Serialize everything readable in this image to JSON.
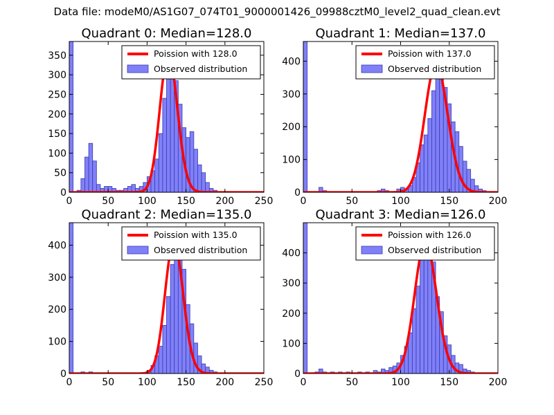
{
  "suptitle": "Data file: modeM0/AS1G07_074T01_9000001426_09988cztM0_level2_quad_clean.evt",
  "colors": {
    "hist_fill": "#8080f8",
    "hist_edge": "#3a3ab0",
    "fit_line": "#ff0000"
  },
  "chart_data": [
    {
      "type": "bar",
      "title": "Quadrant 0: Median=128.0",
      "median": 128.0,
      "xlim": [
        0,
        250
      ],
      "ylim": [
        0,
        385
      ],
      "xticks": [
        0,
        50,
        100,
        150,
        200,
        250
      ],
      "yticks": [
        0,
        50,
        100,
        150,
        200,
        250,
        300,
        350
      ],
      "bin_width": 5,
      "bins": [
        [
          0,
          385
        ],
        [
          10,
          5
        ],
        [
          15,
          35
        ],
        [
          20,
          90
        ],
        [
          25,
          125
        ],
        [
          30,
          80
        ],
        [
          35,
          20
        ],
        [
          40,
          10
        ],
        [
          45,
          15
        ],
        [
          50,
          15
        ],
        [
          55,
          10
        ],
        [
          60,
          5
        ],
        [
          65,
          5
        ],
        [
          70,
          10
        ],
        [
          75,
          15
        ],
        [
          80,
          20
        ],
        [
          85,
          10
        ],
        [
          90,
          15
        ],
        [
          95,
          25
        ],
        [
          100,
          40
        ],
        [
          105,
          55
        ],
        [
          110,
          85
        ],
        [
          115,
          150
        ],
        [
          120,
          240
        ],
        [
          125,
          320
        ],
        [
          130,
          360
        ],
        [
          135,
          285
        ],
        [
          140,
          225
        ],
        [
          145,
          165
        ],
        [
          150,
          140
        ],
        [
          155,
          155
        ],
        [
          160,
          110
        ],
        [
          165,
          70
        ],
        [
          170,
          50
        ],
        [
          175,
          25
        ],
        [
          180,
          10
        ],
        [
          185,
          5
        ]
      ],
      "legend": [
        "Poission with 128.0",
        "Observed distribution"
      ]
    },
    {
      "type": "bar",
      "title": "Quadrant 1: Median=137.0",
      "median": 137.0,
      "xlim": [
        0,
        200
      ],
      "ylim": [
        0,
        460
      ],
      "xticks": [
        0,
        50,
        100,
        150,
        200
      ],
      "yticks": [
        0,
        100,
        200,
        300,
        400
      ],
      "bin_width": 4,
      "bins": [
        [
          0,
          460
        ],
        [
          16,
          15
        ],
        [
          20,
          5
        ],
        [
          76,
          5
        ],
        [
          80,
          10
        ],
        [
          84,
          5
        ],
        [
          96,
          10
        ],
        [
          100,
          15
        ],
        [
          104,
          10
        ],
        [
          108,
          20
        ],
        [
          112,
          45
        ],
        [
          116,
          90
        ],
        [
          120,
          145
        ],
        [
          124,
          175
        ],
        [
          128,
          225
        ],
        [
          132,
          310
        ],
        [
          136,
          400
        ],
        [
          140,
          380
        ],
        [
          144,
          320
        ],
        [
          148,
          270
        ],
        [
          152,
          215
        ],
        [
          156,
          185
        ],
        [
          160,
          140
        ],
        [
          164,
          95
        ],
        [
          168,
          70
        ],
        [
          172,
          40
        ],
        [
          176,
          20
        ],
        [
          180,
          10
        ],
        [
          184,
          5
        ]
      ],
      "legend": [
        "Poission with 137.0",
        "Observed distribution"
      ]
    },
    {
      "type": "bar",
      "title": "Quadrant 2: Median=135.0",
      "median": 135.0,
      "xlim": [
        0,
        250
      ],
      "ylim": [
        0,
        470
      ],
      "xticks": [
        0,
        50,
        100,
        150,
        200,
        250
      ],
      "yticks": [
        0,
        100,
        200,
        300,
        400
      ],
      "bin_width": 5,
      "bins": [
        [
          0,
          470
        ],
        [
          15,
          5
        ],
        [
          25,
          5
        ],
        [
          100,
          10
        ],
        [
          105,
          25
        ],
        [
          110,
          55
        ],
        [
          115,
          85
        ],
        [
          120,
          150
        ],
        [
          125,
          240
        ],
        [
          130,
          340
        ],
        [
          135,
          420
        ],
        [
          140,
          390
        ],
        [
          145,
          325
        ],
        [
          150,
          215
        ],
        [
          155,
          155
        ],
        [
          160,
          95
        ],
        [
          165,
          55
        ],
        [
          170,
          30
        ],
        [
          175,
          20
        ],
        [
          180,
          10
        ],
        [
          185,
          5
        ]
      ],
      "legend": [
        "Poission with 135.0",
        "Observed distribution"
      ]
    },
    {
      "type": "bar",
      "title": "Quadrant 3: Median=126.0",
      "median": 126.0,
      "xlim": [
        0,
        200
      ],
      "ylim": [
        0,
        500
      ],
      "xticks": [
        0,
        50,
        100,
        150,
        200
      ],
      "yticks": [
        0,
        100,
        200,
        300,
        400
      ],
      "bin_width": 4,
      "bins": [
        [
          0,
          500
        ],
        [
          12,
          5
        ],
        [
          16,
          15
        ],
        [
          20,
          5
        ],
        [
          28,
          5
        ],
        [
          36,
          5
        ],
        [
          44,
          5
        ],
        [
          56,
          5
        ],
        [
          64,
          5
        ],
        [
          72,
          10
        ],
        [
          76,
          5
        ],
        [
          80,
          15
        ],
        [
          84,
          10
        ],
        [
          88,
          20
        ],
        [
          92,
          25
        ],
        [
          96,
          35
        ],
        [
          100,
          60
        ],
        [
          104,
          90
        ],
        [
          108,
          135
        ],
        [
          112,
          215
        ],
        [
          116,
          290
        ],
        [
          120,
          390
        ],
        [
          124,
          445
        ],
        [
          128,
          435
        ],
        [
          132,
          370
        ],
        [
          136,
          255
        ],
        [
          140,
          205
        ],
        [
          144,
          125
        ],
        [
          148,
          95
        ],
        [
          152,
          60
        ],
        [
          156,
          35
        ],
        [
          160,
          30
        ],
        [
          164,
          15
        ],
        [
          168,
          10
        ],
        [
          172,
          5
        ]
      ],
      "legend": [
        "Poission with 126.0",
        "Observed distribution"
      ]
    }
  ]
}
